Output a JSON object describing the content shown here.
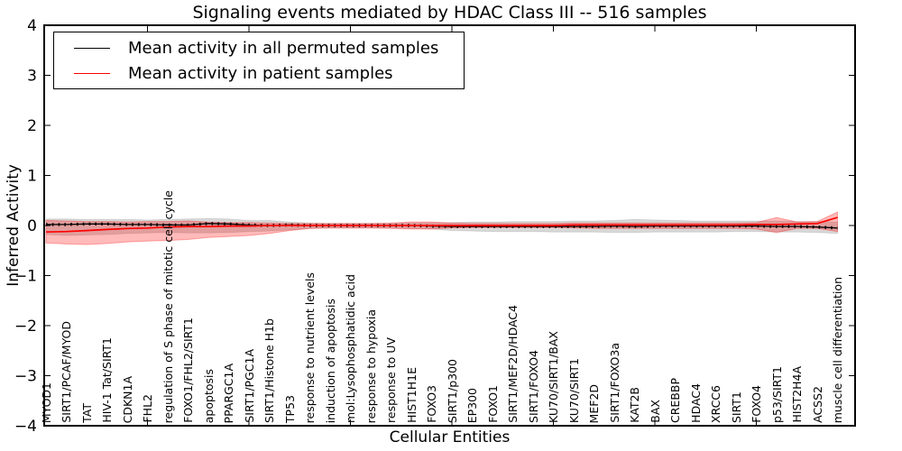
{
  "window": {
    "kind": "static-plot-figure"
  },
  "chart_data": {
    "type": "line",
    "title": "Signaling events mediated by HDAC Class III -- 516 samples",
    "xlabel": "Cellular Entities",
    "ylabel": "Inferred Activity",
    "ylim": [
      -4,
      4
    ],
    "y_ticks": [
      4,
      3,
      2,
      1,
      0,
      -1,
      -2,
      -3,
      -4
    ],
    "grid": false,
    "legend_position": "upper left",
    "categories": [
      "MYOD1",
      "SIRT1/PCAF/MYOD",
      "TAT",
      "HIV-1 Tat/SIRT1",
      "CDKN1A",
      "FHL2",
      "regulation of S phase of mitotic cell cycle",
      "FOXO1/FHL2/SIRT1",
      "apoptosis",
      "PPARGC1A",
      "SIRT1/PGC1A",
      "SIRT1/Histone H1b",
      "TP53",
      "response to nutrient levels",
      "induction of apoptosis",
      "mol:Lysophosphatidic acid",
      "response to hypoxia",
      "response to UV",
      "HIST1H1E",
      "FOXO3",
      "SIRT1/p300",
      "EP300",
      "FOXO1",
      "SIRT1/MEF2D/HDAC4",
      "SIRT1/FOXO4",
      "KU70/SIRT1/BAX",
      "KU70/SIRT1",
      "MEF2D",
      "SIRT1/FOXO3a",
      "KAT2B",
      "BAX",
      "CREBBP",
      "HDAC4",
      "XRCC6",
      "SIRT1",
      "FOXO4",
      "p53/SIRT1",
      "HIST2H4A",
      "ACSS2",
      "muscle cell differentiation"
    ],
    "series": [
      {
        "name": "Mean activity in all permuted samples",
        "color": "#000000",
        "style": "dashed",
        "values": [
          0.02,
          0.02,
          0.03,
          0.03,
          0.02,
          0.02,
          0.01,
          0.01,
          0.04,
          0.03,
          0.01,
          0.0,
          0.01,
          0.0,
          0.0,
          0.0,
          0.0,
          0.0,
          0.0,
          -0.01,
          -0.02,
          -0.02,
          -0.02,
          -0.02,
          -0.02,
          -0.02,
          -0.02,
          -0.02,
          -0.01,
          -0.02,
          -0.01,
          -0.01,
          -0.01,
          -0.01,
          -0.01,
          -0.01,
          -0.02,
          -0.02,
          -0.03,
          -0.05
        ]
      },
      {
        "name": "Mean activity in patient samples",
        "color": "#ff0000",
        "style": "solid",
        "values": [
          -0.13,
          -0.12,
          -0.1,
          -0.08,
          -0.06,
          -0.05,
          -0.03,
          -0.02,
          -0.02,
          -0.01,
          -0.01,
          0.0,
          0.0,
          0.0,
          0.0,
          0.0,
          0.0,
          0.0,
          0.0,
          0.0,
          0.0,
          0.0,
          0.0,
          0.0,
          0.0,
          0.0,
          0.01,
          0.01,
          0.01,
          0.01,
          0.01,
          0.01,
          0.01,
          0.01,
          0.01,
          0.02,
          0.02,
          0.03,
          0.04,
          0.16
        ]
      }
    ],
    "bands": [
      {
        "name": "permuted samples range",
        "fill": "#d8d8d8",
        "upper": [
          0.13,
          0.13,
          0.12,
          0.12,
          0.12,
          0.11,
          0.12,
          0.13,
          0.14,
          0.13,
          0.1,
          0.1,
          0.07,
          0.05,
          0.04,
          0.04,
          0.04,
          0.04,
          0.05,
          0.05,
          0.06,
          0.07,
          0.07,
          0.08,
          0.08,
          0.08,
          0.09,
          0.09,
          0.1,
          0.12,
          0.11,
          0.1,
          0.09,
          0.09,
          0.09,
          0.09,
          0.09,
          0.08,
          0.08,
          0.07
        ],
        "lower": [
          -0.18,
          -0.2,
          -0.19,
          -0.18,
          -0.16,
          -0.15,
          -0.14,
          -0.15,
          -0.15,
          -0.14,
          -0.12,
          -0.11,
          -0.09,
          -0.06,
          -0.05,
          -0.05,
          -0.05,
          -0.05,
          -0.06,
          -0.07,
          -0.1,
          -0.11,
          -0.12,
          -0.12,
          -0.12,
          -0.13,
          -0.13,
          -0.13,
          -0.14,
          -0.14,
          -0.13,
          -0.13,
          -0.13,
          -0.13,
          -0.12,
          -0.12,
          -0.13,
          -0.13,
          -0.14,
          -0.16
        ]
      },
      {
        "name": "patient samples range",
        "fill": "rgba(255,0,0,0.27)",
        "upper": [
          0.1,
          0.09,
          0.08,
          0.08,
          0.07,
          0.08,
          0.08,
          0.09,
          0.07,
          0.06,
          0.06,
          0.05,
          0.04,
          0.04,
          0.04,
          0.04,
          0.04,
          0.05,
          0.07,
          0.07,
          0.05,
          0.04,
          0.04,
          0.04,
          0.04,
          0.04,
          0.05,
          0.05,
          0.05,
          0.05,
          0.05,
          0.05,
          0.05,
          0.05,
          0.05,
          0.06,
          0.16,
          0.07,
          0.08,
          0.27
        ],
        "lower": [
          -0.35,
          -0.37,
          -0.38,
          -0.36,
          -0.33,
          -0.31,
          -0.3,
          -0.28,
          -0.24,
          -0.22,
          -0.2,
          -0.16,
          -0.1,
          -0.06,
          -0.05,
          -0.05,
          -0.05,
          -0.06,
          -0.07,
          -0.07,
          -0.05,
          -0.04,
          -0.04,
          -0.04,
          -0.04,
          -0.04,
          -0.05,
          -0.06,
          -0.06,
          -0.06,
          -0.06,
          -0.06,
          -0.06,
          -0.06,
          -0.06,
          -0.07,
          -0.14,
          -0.06,
          -0.06,
          -0.12
        ]
      }
    ]
  }
}
